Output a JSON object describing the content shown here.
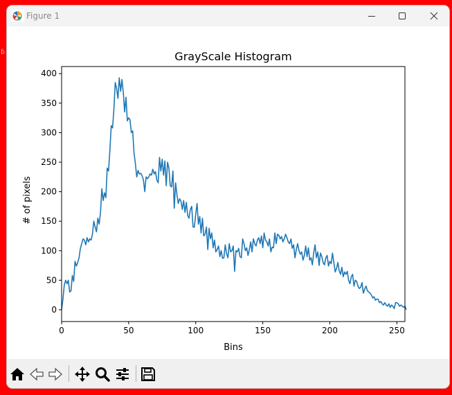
{
  "window": {
    "title": "Figure 1"
  },
  "colors": {
    "line": "#1f77b4",
    "titlebar_bg": "#f3f3f3",
    "toolbar_bg": "#f0f0f0",
    "outer_border": "#ff0000"
  },
  "toolbar": {
    "icons": [
      "home-icon",
      "back-icon",
      "forward-icon",
      "pan-icon",
      "zoom-icon",
      "configure-subplots-icon",
      "save-icon"
    ]
  },
  "chart_data": {
    "type": "line",
    "title": "GrayScale Histogram",
    "xlabel": "Bins",
    "ylabel": "# of pixels",
    "xlim": [
      0,
      256
    ],
    "ylim": [
      -20,
      412
    ],
    "xticks": [
      0,
      50,
      100,
      150,
      200,
      250
    ],
    "yticks": [
      0,
      50,
      100,
      150,
      200,
      250,
      300,
      350,
      400
    ],
    "xtick_labels": [
      "0",
      "50",
      "100",
      "150",
      "200",
      "250"
    ],
    "ytick_labels": [
      "0",
      "50",
      "100",
      "150",
      "200",
      "250",
      "300",
      "350",
      "400"
    ],
    "grid": false,
    "series": [
      {
        "values": [
          0,
          18,
          42,
          50,
          44,
          50,
          30,
          32,
          58,
          48,
          82,
          74,
          80,
          88,
          104,
          112,
          120,
          118,
          110,
          122,
          115,
          120,
          118,
          128,
          150,
          140,
          132,
          155,
          145,
          165,
          205,
          185,
          198,
          190,
          240,
          235,
          270,
          312,
          308,
          340,
          385,
          375,
          358,
          393,
          370,
          390,
          368,
          335,
          360,
          320,
          325,
          322,
          300,
          303,
          265,
          248,
          225,
          236,
          230,
          231,
          227,
          220,
          200,
          225,
          222,
          225,
          230,
          228,
          238,
          230,
          234,
          220,
          215,
          258,
          235,
          255,
          228,
          252,
          210,
          250,
          240,
          210,
          208,
          235,
          172,
          215,
          195,
          180,
          188,
          184,
          170,
          185,
          165,
          182,
          160,
          155,
          170,
          175,
          140,
          140,
          162,
          180,
          145,
          158,
          130,
          155,
          125,
          128,
          140,
          102,
          138,
          120,
          130,
          105,
          118,
          98,
          102,
          108,
          90,
          100,
          87,
          88,
          110,
          95,
          88,
          112,
          98,
          100,
          108,
          65,
          100,
          98,
          104,
          90,
          88,
          120,
          112,
          100,
          105,
          92,
          102,
          115,
          98,
          120,
          112,
          108,
          118,
          122,
          112,
          125,
          105,
          130,
          118,
          115,
          108,
          120,
          98,
          106,
          105,
          130,
          112,
          128,
          126,
          120,
          124,
          115,
          120,
          128,
          122,
          115,
          112,
          120,
          104,
          110,
          88,
          102,
          112,
          100,
          94,
          98,
          84,
          92,
          108,
          90,
          105,
          84,
          88,
          76,
          97,
          110,
          88,
          98,
          75,
          96,
          90,
          80,
          76,
          88,
          92,
          74,
          82,
          78,
          96,
          80,
          64,
          70,
          80,
          66,
          60,
          72,
          56,
          64,
          60,
          65,
          50,
          44,
          56,
          60,
          40,
          50,
          48,
          40,
          36,
          38,
          46,
          28,
          35,
          40,
          32,
          30,
          28,
          25,
          20,
          22,
          16,
          18,
          18,
          12,
          14,
          10,
          8,
          12,
          8,
          6,
          10,
          4,
          8,
          6,
          2,
          12,
          12,
          10,
          6,
          8,
          6,
          4,
          6,
          0
        ]
      }
    ]
  }
}
